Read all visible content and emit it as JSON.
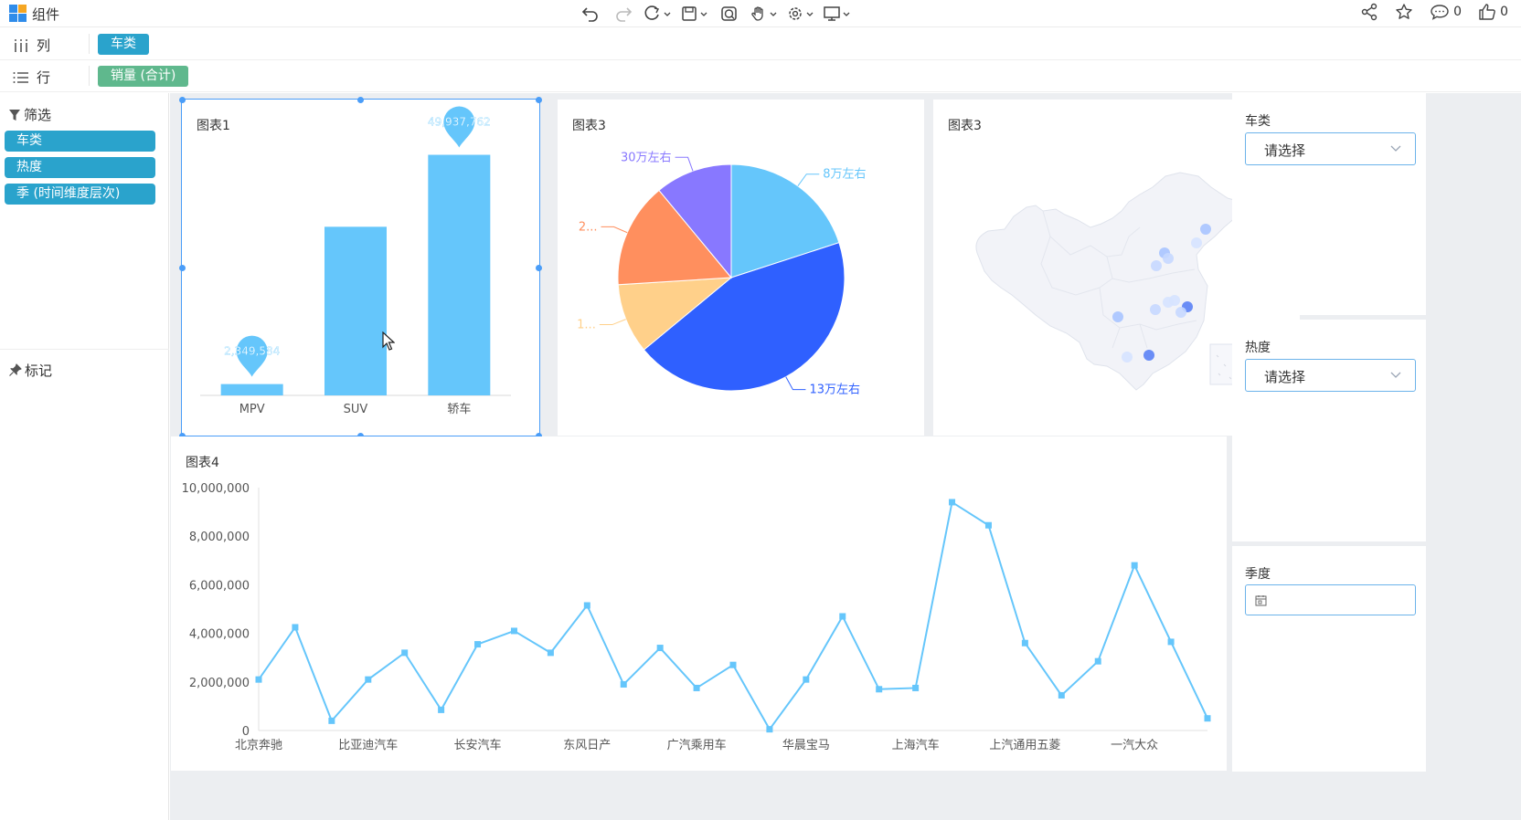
{
  "app": {
    "title": "组件"
  },
  "toolbar": {
    "tools": [
      "undo-icon",
      "redo-icon",
      "refresh-icon",
      "save-icon",
      "preview-icon",
      "hand-icon",
      "settings-icon",
      "display-icon"
    ],
    "comments_count": "0",
    "likes_count": "0"
  },
  "shelves": {
    "columns": {
      "label": "列",
      "field": "车类"
    },
    "rows": {
      "label": "行",
      "field": "销量 (合计)"
    }
  },
  "left_panel": {
    "filter_title": "筛选",
    "filters": [
      "车类",
      "热度",
      "季 (时间维度层次)"
    ],
    "marks_title": "标记"
  },
  "colors": {
    "accent": "#2aa3cc",
    "green_pill": "#5fb88d",
    "bar": "#65c6fb",
    "selection": "#4a9df8"
  },
  "charts": {
    "chart1": {
      "title": "图表1"
    },
    "chart2": {
      "title": "图表3"
    },
    "chart3": {
      "title": "图表3"
    },
    "chart4": {
      "title": "图表4"
    }
  },
  "side_filters": [
    {
      "title": "车类",
      "placeholder": "请选择"
    },
    {
      "title": "热度",
      "placeholder": "请选择"
    },
    {
      "title": "季度",
      "placeholder": ""
    }
  ],
  "chart_data": [
    {
      "type": "bar",
      "title": "图表1",
      "categories": [
        "MPV",
        "SUV",
        "轿车"
      ],
      "values": [
        2349584,
        35000000,
        49937762
      ],
      "markers": [
        {
          "category": "MPV",
          "label": "2,349,584"
        },
        {
          "category": "轿车",
          "label": "49,937,762"
        }
      ],
      "ylim": [
        0,
        58000000
      ]
    },
    {
      "type": "pie",
      "title": "图表3",
      "slices": [
        {
          "name": "8万左右",
          "value": 20,
          "color": "#65c6fb"
        },
        {
          "name": "13万左右",
          "value": 44,
          "color": "#2f60ff"
        },
        {
          "name": "1...",
          "value": 10,
          "color": "#ffd08a"
        },
        {
          "name": "2...",
          "value": 15,
          "color": "#ff8f5e"
        },
        {
          "name": "30万左右",
          "value": 11,
          "color": "#8878ff"
        }
      ]
    },
    {
      "type": "line",
      "title": "图表4",
      "x_tick_labels": [
        "北京奔驰",
        "比亚迪汽车",
        "长安汽车",
        "东风日产",
        "广汽乘用车",
        "华晨宝马",
        "上海汽车",
        "上汽通用五菱",
        "一汽大众"
      ],
      "y_tick_labels": [
        "0",
        "2,000,000",
        "4,000,000",
        "6,000,000",
        "8,000,000",
        "10,000,000"
      ],
      "ylim": [
        0,
        10000000
      ],
      "values": [
        2100000,
        4250000,
        400000,
        2100000,
        3200000,
        850000,
        3550000,
        4100000,
        3200000,
        5150000,
        1900000,
        3400000,
        1750000,
        2700000,
        50000,
        2100000,
        4700000,
        1700000,
        1750000,
        9400000,
        8450000,
        3600000,
        1450000,
        2850000,
        6800000,
        3650000,
        500000
      ]
    }
  ],
  "map": {
    "points": [
      {
        "x": 298,
        "y": 142,
        "c": "#a9c4ff"
      },
      {
        "x": 288,
        "y": 157,
        "c": "#d6e3ff"
      },
      {
        "x": 253,
        "y": 168,
        "c": "#a9c4ff"
      },
      {
        "x": 257,
        "y": 174,
        "c": "#c7d8ff"
      },
      {
        "x": 244,
        "y": 182,
        "c": "#c7d8ff"
      },
      {
        "x": 257,
        "y": 222,
        "c": "#d6e3ff"
      },
      {
        "x": 264,
        "y": 220,
        "c": "#d6e3ff"
      },
      {
        "x": 278,
        "y": 227,
        "c": "#5b82f5"
      },
      {
        "x": 271,
        "y": 233,
        "c": "#c7d8ff"
      },
      {
        "x": 243,
        "y": 230,
        "c": "#c7d8ff"
      },
      {
        "x": 202,
        "y": 238,
        "c": "#a9c4ff"
      },
      {
        "x": 236,
        "y": 280,
        "c": "#5b82f5"
      },
      {
        "x": 212,
        "y": 282,
        "c": "#d6e3ff"
      }
    ]
  }
}
